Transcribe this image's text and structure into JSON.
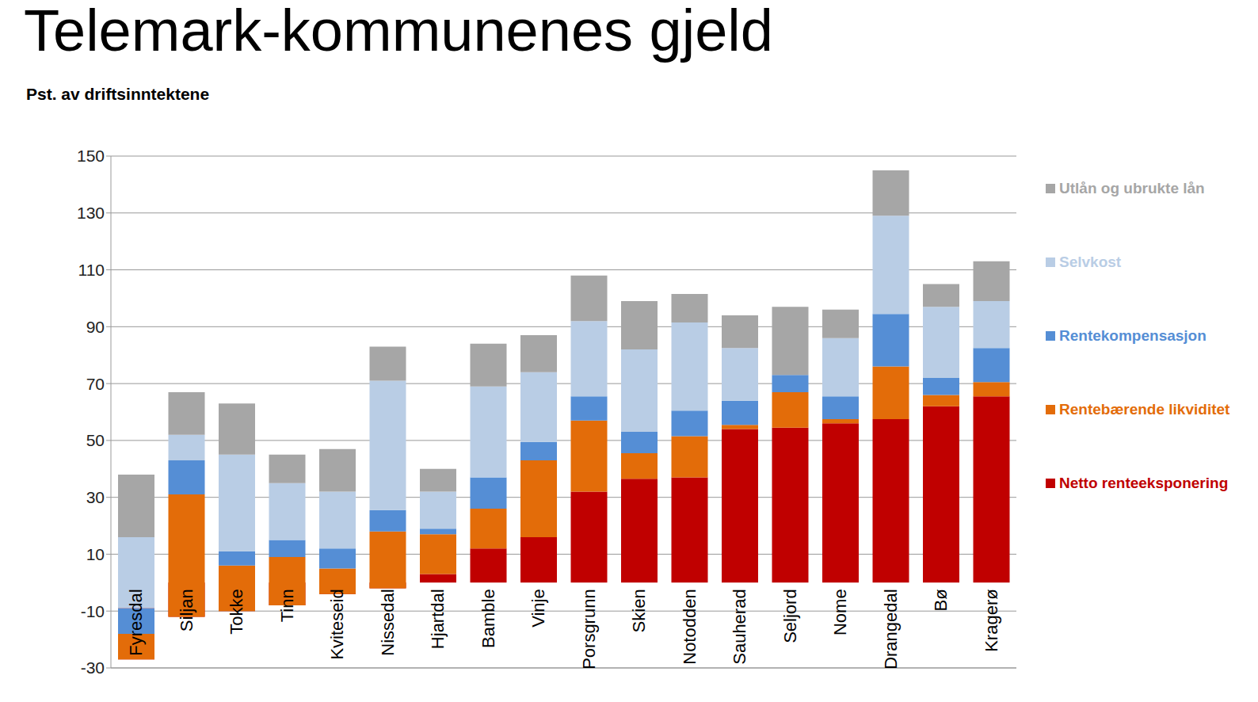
{
  "chart_data": {
    "type": "bar",
    "title": "Telemark-kommunenes gjeld",
    "subtitle": "Pst. av driftsinntektene",
    "categories": [
      "Fyresdal",
      "Siljan",
      "Tokke",
      "Tinn",
      "Kviteseid",
      "Nissedal",
      "Hjartdal",
      "Bamble",
      "Vinje",
      "Porsgrunn",
      "Skien",
      "Notodden",
      "Sauherad",
      "Seljord",
      "Nome",
      "Drangedal",
      "Bø",
      "Kragerø"
    ],
    "series": [
      {
        "name": "Netto renteeksponering",
        "color": "#C00000",
        "values": [
          -27,
          -12,
          -10,
          -8,
          -4,
          -2,
          3,
          12,
          16,
          32,
          36.5,
          37,
          54,
          54.5,
          56,
          57.5,
          62,
          65.5
        ]
      },
      {
        "name": "Rentebærende likviditet",
        "color": "#E36C09",
        "values": [
          9,
          43,
          16,
          17,
          9,
          20,
          14,
          14,
          27,
          25,
          9,
          14.5,
          1.5,
          12.5,
          1.5,
          18.5,
          4,
          5
        ]
      },
      {
        "name": "Rentekompensasjon",
        "color": "#558ED5",
        "values": [
          9,
          12,
          5,
          6,
          7,
          7.5,
          2,
          11,
          6.5,
          8.5,
          7.5,
          9,
          8.5,
          6,
          8,
          18.5,
          6,
          12
        ]
      },
      {
        "name": "Selvkost",
        "color": "#B9CDE5",
        "values": [
          25,
          9,
          34,
          20,
          20,
          45.5,
          13,
          32,
          24.5,
          26.5,
          29,
          31,
          18.5,
          0,
          20.5,
          34.5,
          25,
          16.5
        ]
      },
      {
        "name": "Utlån og ubrukte lån",
        "color": "#A6A6A6",
        "values": [
          22,
          15,
          18,
          10,
          15,
          12,
          8,
          15,
          13,
          16,
          17,
          10,
          11.5,
          24,
          10,
          16,
          8,
          14
        ]
      }
    ],
    "ylim": [
      -30,
      150
    ],
    "yticks": [
      -30,
      -10,
      10,
      30,
      50,
      70,
      90,
      110,
      130,
      150
    ],
    "grid": true,
    "stacked": true,
    "legend": "right"
  }
}
